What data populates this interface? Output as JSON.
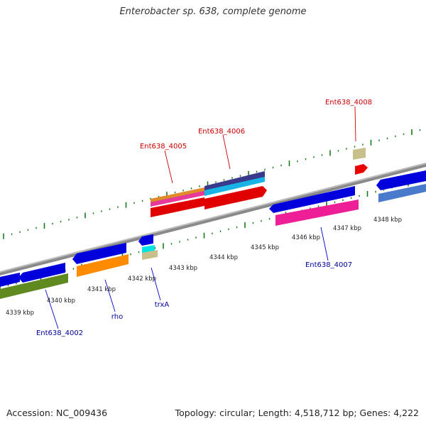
{
  "title": "Enterobacter sp. 638, complete genome",
  "footer": {
    "accession": "Accession: NC_009436",
    "summary": "Topology: circular; Length: 4,518,712 bp; Genes: 4,222"
  },
  "colors": {
    "red_label": "#cc0000",
    "blue_label": "#000099",
    "tick": "#1a7a1a",
    "backbone": "#999999"
  },
  "ticks": [
    {
      "label": "4339 kbp"
    },
    {
      "label": "4340 kbp"
    },
    {
      "label": "4341 kbp"
    },
    {
      "label": "4342 kbp"
    },
    {
      "label": "4343 kbp"
    },
    {
      "label": "4344 kbp"
    },
    {
      "label": "4345 kbp"
    },
    {
      "label": "4346 kbp"
    },
    {
      "label": "4347 kbp"
    },
    {
      "label": "4348 kbp"
    }
  ],
  "gene_labels": [
    {
      "text": "Ent638_4008",
      "color": "#cc0000"
    },
    {
      "text": "Ent638_4006",
      "color": "#cc0000"
    },
    {
      "text": "Ent638_4005",
      "color": "#cc0000"
    },
    {
      "text": "Ent638_4007",
      "color": "#000099"
    },
    {
      "text": "Ent638_4002",
      "color": "#000099"
    },
    {
      "text": "rho",
      "color": "#000099"
    },
    {
      "text": "trxA",
      "color": "#000099"
    }
  ]
}
